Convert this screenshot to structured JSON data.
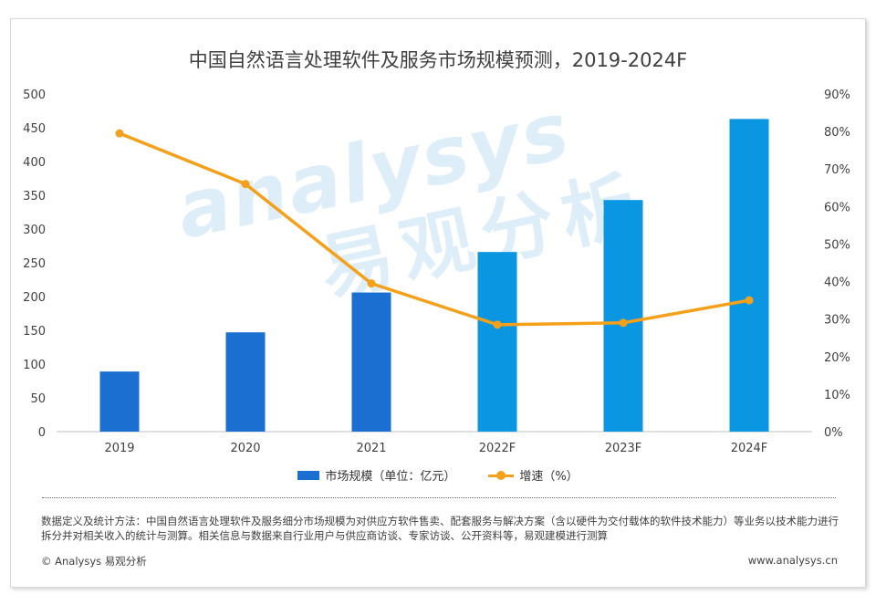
{
  "title": "中国自然语言处理软件及服务市场规模预测，2019-2024F",
  "watermark": {
    "en": "analysys",
    "cn": "易观分析"
  },
  "chart_data": {
    "type": "bar",
    "categories": [
      "2019",
      "2020",
      "2021",
      "2022F",
      "2023F",
      "2024F"
    ],
    "series": [
      {
        "name": "市场规模（单位：亿元）",
        "type": "bar",
        "axis": "left",
        "values": [
          89,
          147,
          206,
          266,
          343,
          463
        ],
        "colors": [
          "#1a6fd0",
          "#1a6fd0",
          "#1a6fd0",
          "#0a96e0",
          "#0a96e0",
          "#0a96e0"
        ]
      },
      {
        "name": "增速（%）",
        "type": "line",
        "axis": "right",
        "values": [
          79.5,
          66.0,
          39.5,
          28.5,
          29.0,
          35.0
        ],
        "color": "#f5a01a"
      }
    ],
    "y_left": {
      "min": 0,
      "max": 500,
      "ticks": [
        "0",
        "50",
        "100",
        "150",
        "200",
        "250",
        "300",
        "350",
        "400",
        "450",
        "500"
      ]
    },
    "y_right": {
      "min": 0,
      "max": 90,
      "ticks": [
        "0%",
        "10%",
        "20%",
        "30%",
        "40%",
        "50%",
        "60%",
        "70%",
        "80%",
        "90%"
      ]
    },
    "grid": false,
    "legend_position": "bottom"
  },
  "note": "数据定义及统计方法：中国自然语言处理软件及服务细分市场规模为对供应方软件售卖、配套服务与解决方案（含以硬件为交付载体的软件技术能力）等业务以技术能力进行拆分并对相关收入的统计与测算。相关信息与数据来自行业用户与供应商访谈、专家访谈、公开资料等，易观建模进行测算",
  "footer": {
    "copyright": "© Analysys 易观分析",
    "website": "www.analysys.cn"
  }
}
